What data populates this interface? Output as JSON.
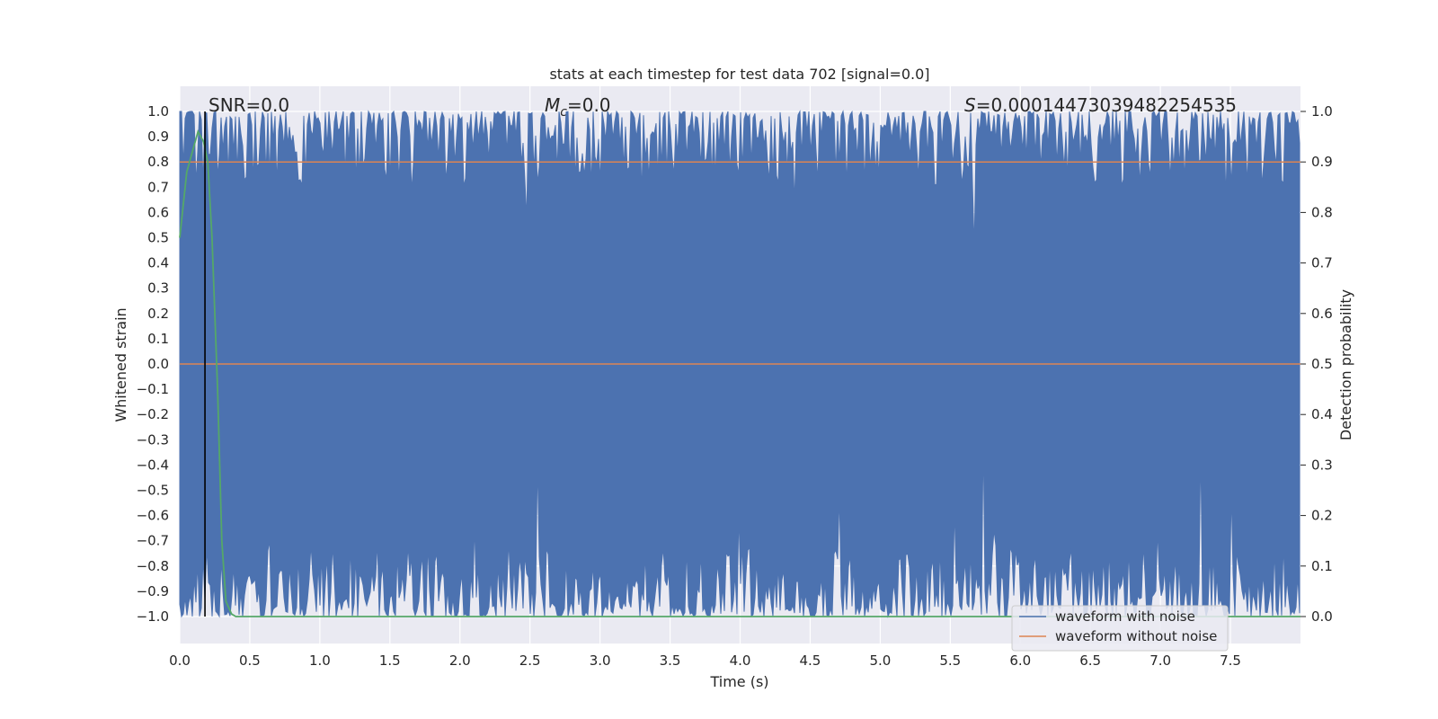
{
  "chart_data": {
    "type": "line",
    "title": "stats at each timestep for test data 702 [signal=0.0]",
    "xlabel": "Time (s)",
    "ylabel": "Whitened strain",
    "ylabel_right": "Detection probability",
    "xlim": [
      0.0,
      8.0
    ],
    "ylim": [
      -1.0,
      1.0
    ],
    "ylim_right": [
      0.0,
      1.0
    ],
    "x_ticks": [
      "0.0",
      "0.5",
      "1.0",
      "1.5",
      "2.0",
      "2.5",
      "3.0",
      "3.5",
      "4.0",
      "4.5",
      "5.0",
      "5.5",
      "6.0",
      "6.5",
      "7.0",
      "7.5"
    ],
    "y_ticks": [
      "1.0",
      "0.9",
      "0.8",
      "0.7",
      "0.6",
      "0.5",
      "0.4",
      "0.3",
      "0.2",
      "0.1",
      "0.0",
      "−0.1",
      "−0.2",
      "−0.3",
      "−0.4",
      "−0.5",
      "−0.6",
      "−0.7",
      "−0.8",
      "−0.9",
      "−1.0"
    ],
    "y_ticks_right": [
      "1.0",
      "0.9",
      "0.8",
      "0.7",
      "0.6",
      "0.5",
      "0.4",
      "0.3",
      "0.2",
      "0.1",
      "0.0"
    ],
    "grid": true,
    "legend": {
      "placement": "lower-right",
      "entries": [
        {
          "name": "waveform with noise",
          "color": "#4c72b0"
        },
        {
          "name": "waveform without noise",
          "color": "#dd8452"
        }
      ]
    },
    "annotations": {
      "snr": "SNR=0.0",
      "mc_symbol": "M",
      "mc_sub": "c",
      "mc_value": "=0.0",
      "s_symbol": "S",
      "s_value": "=0.0001447303948225453​5"
    },
    "series": [
      {
        "name": "waveform with noise",
        "color": "#4c72b0",
        "description": "normalized noisy strain filling [-1, 1]"
      },
      {
        "name": "waveform without noise",
        "color": "#dd8452",
        "values_constant": 0.0
      },
      {
        "color": "#55a868",
        "axis": "right",
        "x": [
          0.0,
          0.05,
          0.1,
          0.13,
          0.17,
          0.2,
          0.23,
          0.27,
          0.3,
          0.33,
          0.37,
          0.4,
          8.0
        ],
        "y": [
          0.75,
          0.88,
          0.93,
          0.96,
          0.94,
          0.9,
          0.75,
          0.45,
          0.15,
          0.03,
          0.005,
          0.0,
          0.0
        ]
      },
      {
        "color": "#dd8452",
        "axis": "right",
        "description": "threshold line",
        "values_constant": 0.9
      },
      {
        "color": "#000000",
        "description": "vertical marker",
        "x_constant": 0.18
      }
    ]
  }
}
